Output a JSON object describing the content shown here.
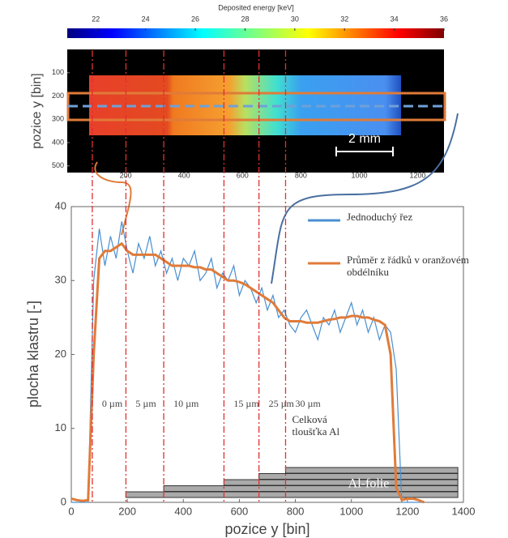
{
  "chart_data": [
    {
      "type": "heatmap",
      "title": "Deposited energy [keV]",
      "colorbar_ticks": [
        22,
        24,
        26,
        28,
        30,
        32,
        34,
        36
      ],
      "clim": [
        20.85,
        36
      ],
      "ylabel": "pozice y [bin]",
      "yticks": [
        100,
        200,
        300,
        400,
        500
      ],
      "ylim": [
        0,
        520
      ],
      "xticks": [
        200,
        400,
        600,
        800,
        1000,
        1200
      ],
      "xlim": [
        0,
        1290
      ],
      "scale_bar": "2 mm"
    },
    {
      "type": "line",
      "xlabel": "pozice y [bin]",
      "ylabel": "plocha klastru [-]",
      "xlim": [
        0,
        1400
      ],
      "xticks": [
        0,
        200,
        400,
        600,
        800,
        1000,
        1200,
        1400
      ],
      "ylim": [
        0,
        40
      ],
      "yticks": [
        0,
        10,
        20,
        30,
        40
      ],
      "x": [
        0,
        20,
        40,
        60,
        80,
        100,
        120,
        140,
        160,
        180,
        200,
        220,
        240,
        260,
        280,
        300,
        320,
        340,
        360,
        380,
        400,
        420,
        440,
        460,
        480,
        500,
        520,
        540,
        560,
        580,
        600,
        620,
        640,
        660,
        680,
        700,
        720,
        740,
        760,
        780,
        800,
        820,
        840,
        860,
        880,
        900,
        920,
        940,
        960,
        980,
        1000,
        1020,
        1040,
        1060,
        1080,
        1100,
        1120,
        1140,
        1160,
        1180,
        1200,
        1220,
        1240,
        1260
      ],
      "series": [
        {
          "name": "Jednoduchý řez",
          "color": "#4a8fd0",
          "values": [
            0,
            0,
            0,
            0,
            30,
            37,
            32,
            36,
            33,
            38,
            34,
            31,
            35,
            33,
            36,
            32,
            34,
            31,
            33,
            30,
            33,
            32,
            34,
            30,
            31,
            33,
            29,
            31,
            30,
            32,
            28,
            30,
            29,
            27,
            29,
            26,
            28,
            25,
            26,
            24,
            23,
            25,
            26,
            24,
            22,
            25,
            24,
            26,
            23,
            25,
            27,
            24,
            26,
            23,
            25,
            22,
            24,
            23,
            18,
            0,
            0,
            0,
            0,
            0
          ]
        },
        {
          "name": "Průměr z řádků v oranžovém obdélníku",
          "color": "#e07b39",
          "values": [
            0.5,
            0.3,
            0.2,
            0.3,
            20,
            33,
            34,
            34,
            34.5,
            35,
            34,
            33.5,
            33.5,
            33.5,
            33.5,
            33.5,
            33,
            32.5,
            32,
            32,
            32,
            32,
            31.8,
            31.8,
            31.5,
            31.5,
            31,
            30.5,
            30,
            30,
            29.8,
            29.5,
            29,
            28.5,
            28,
            27.5,
            27,
            26,
            25,
            24.5,
            24.5,
            24.5,
            24.3,
            24.3,
            24.3,
            24.5,
            24.7,
            24.8,
            25,
            25,
            25.2,
            25.2,
            25,
            25,
            24.7,
            24.5,
            24,
            20,
            2,
            0.3,
            0.5,
            0.5,
            0.3,
            0
          ]
        }
      ],
      "boundaries": [
        75,
        195,
        330,
        545,
        670,
        765
      ],
      "thickness_labels": [
        "0 µm",
        "5 µm",
        "10 µm",
        "15 µm",
        "25 µm",
        "30 µm"
      ],
      "thickness_note": "Celková tloušťka Al",
      "foil": {
        "label": "Al-folie",
        "starts": [
          195,
          330,
          545,
          670,
          765
        ],
        "end": 1380
      }
    }
  ]
}
